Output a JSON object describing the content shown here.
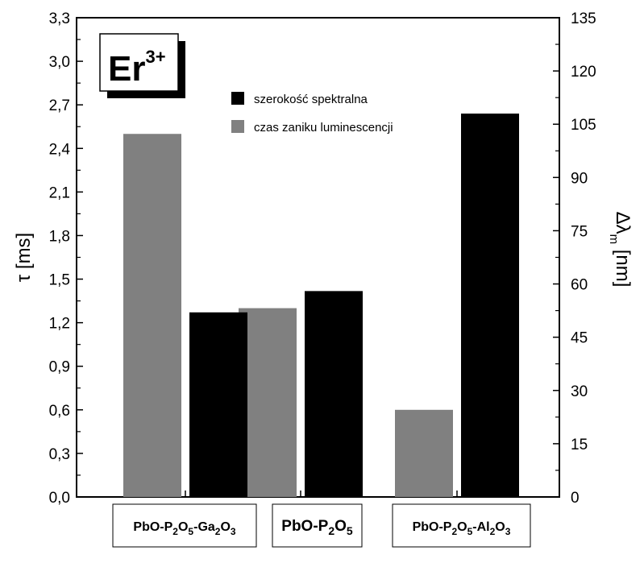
{
  "chart_data": {
    "type": "bar",
    "badge": {
      "base": "Er",
      "sup": "3+"
    },
    "categories": [
      {
        "parts": [
          [
            "PbO-P",
            ""
          ],
          [
            "2",
            "sub"
          ],
          [
            "O",
            ""
          ],
          [
            "5",
            "sub"
          ],
          [
            "-Ga",
            ""
          ],
          [
            "2",
            "sub"
          ],
          [
            "O",
            ""
          ],
          [
            "3",
            "sub"
          ]
        ],
        "size": "normal"
      },
      {
        "parts": [
          [
            "PbO-P",
            ""
          ],
          [
            "2",
            "sub"
          ],
          [
            "O",
            ""
          ],
          [
            "5",
            "sub"
          ]
        ],
        "size": "big"
      },
      {
        "parts": [
          [
            "PbO-P",
            ""
          ],
          [
            "2",
            "sub"
          ],
          [
            "O",
            ""
          ],
          [
            "5",
            "sub"
          ],
          [
            "-Al",
            ""
          ],
          [
            "2",
            "sub"
          ],
          [
            "O",
            ""
          ],
          [
            "3",
            "sub"
          ]
        ],
        "size": "normal"
      }
    ],
    "series": [
      {
        "name": "czas zaniku luminescencji",
        "axis": "left",
        "color": "#808080",
        "values": [
          2.5,
          1.3,
          0.6
        ]
      },
      {
        "name": "szerokość spektralna",
        "axis": "right",
        "color": "#000000",
        "values": [
          52,
          58,
          108
        ]
      }
    ],
    "legend_order": [
      1,
      0
    ],
    "legend_position": "top-center",
    "left_axis": {
      "label": "τ [ms]",
      "ylim": [
        0,
        3.3
      ],
      "ticks": [
        "0,0",
        "0,3",
        "0,6",
        "0,9",
        "1,2",
        "1,5",
        "1,8",
        "2,1",
        "2,4",
        "2,7",
        "3,0",
        "3,3"
      ],
      "tick_values": [
        0,
        0.3,
        0.6,
        0.9,
        1.2,
        1.5,
        1.8,
        2.1,
        2.4,
        2.7,
        3.0,
        3.3
      ]
    },
    "right_axis": {
      "label_parts": [
        [
          "Δλ",
          ""
        ],
        [
          "m",
          "sub"
        ],
        [
          " [nm]",
          ""
        ]
      ],
      "ylim": [
        0,
        135
      ],
      "ticks": [
        "0",
        "15",
        "30",
        "45",
        "60",
        "75",
        "90",
        "105",
        "120",
        "135"
      ],
      "tick_values": [
        0,
        15,
        30,
        45,
        60,
        75,
        90,
        105,
        120,
        135
      ]
    },
    "grid": false
  }
}
